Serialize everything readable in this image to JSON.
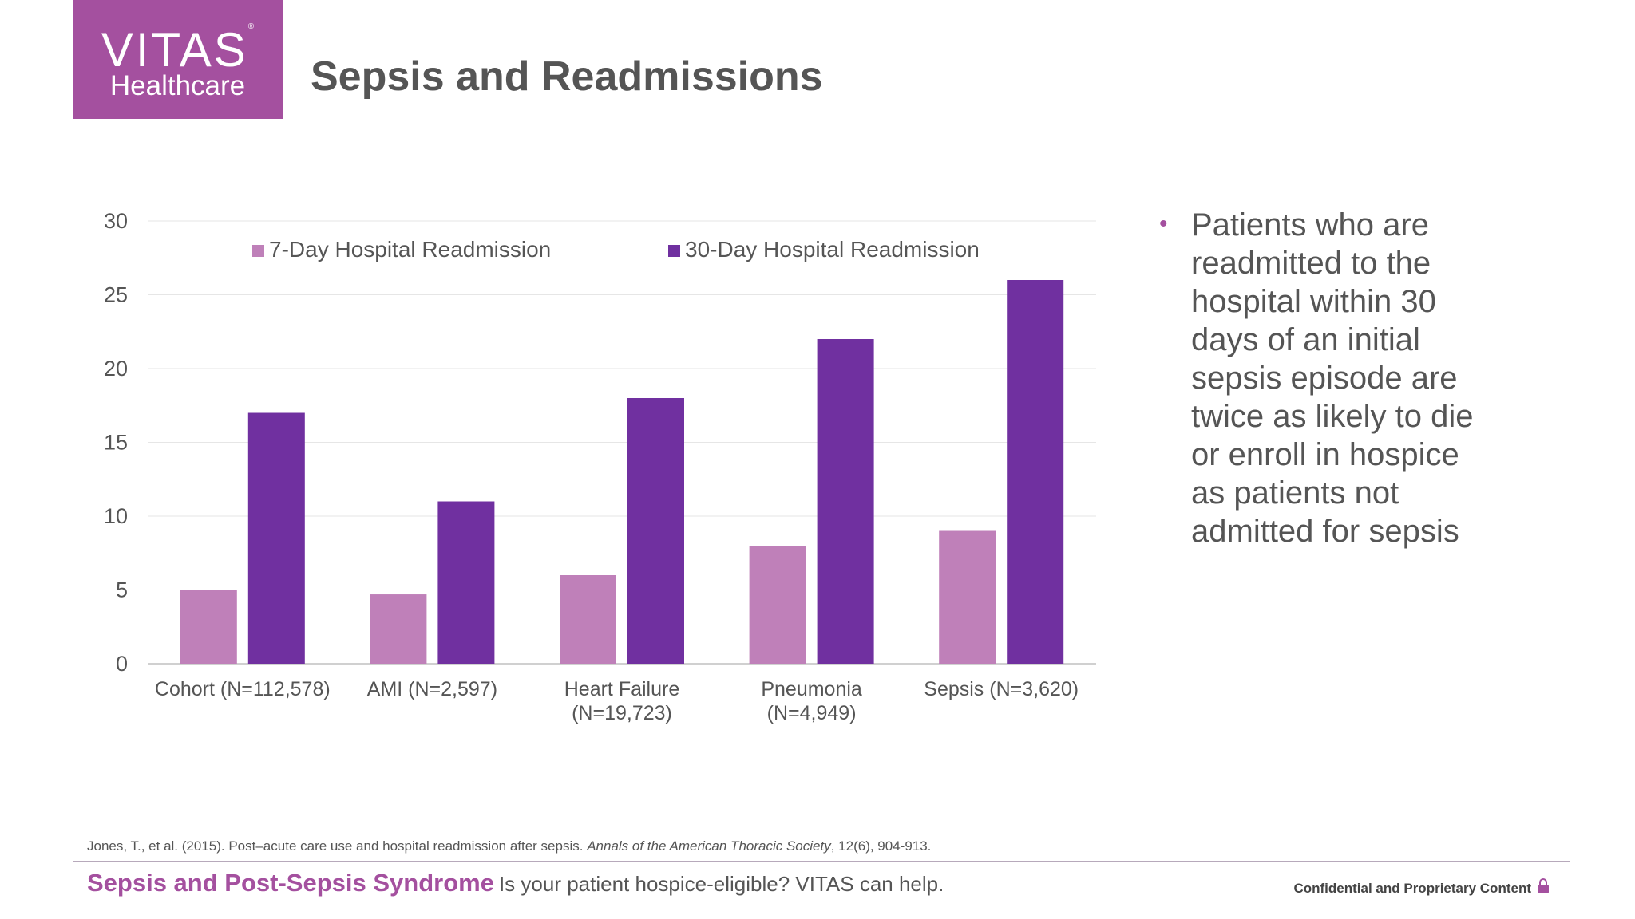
{
  "logo": {
    "brand": "VITAS",
    "mark": "®",
    "sub": "Healthcare"
  },
  "page_title": "Sepsis and Readmissions",
  "bullets": [
    "Patients who are readmitted to the hospital within 30 days of an initial sepsis episode are twice as likely to die or enroll in hospice as patients not admitted for sepsis"
  ],
  "citation": {
    "prefix": "Jones, T., et al. (2015). Post–acute care use and hospital readmission after sepsis. ",
    "journal": "Annals of the American Thoracic Society",
    "suffix": ", 12(6), 904-913."
  },
  "footer": {
    "title": "Sepsis and Post-Sepsis Syndrome",
    "tagline": "Is your patient hospice-eligible? VITAS can help.",
    "confidential": "Confidential and Proprietary Content"
  },
  "colors": {
    "brand": "#a4509f",
    "series_7day": "#bf80b9",
    "series_30day": "#7030a0",
    "text": "#555555"
  },
  "chart_data": {
    "type": "bar",
    "categories": [
      [
        "Cohort (N=112,578)"
      ],
      [
        "AMI (N=2,597)"
      ],
      [
        "Heart Failure",
        "(N=19,723)"
      ],
      [
        "Pneumonia",
        "(N=4,949)"
      ],
      [
        "Sepsis (N=3,620)"
      ]
    ],
    "series": [
      {
        "name": "7-Day Hospital Readmission",
        "values": [
          5,
          4.7,
          6,
          8,
          9
        ],
        "color": "#bf80b9"
      },
      {
        "name": "30-Day Hospital Readmission",
        "values": [
          17,
          11,
          18,
          22,
          26
        ],
        "color": "#7030a0"
      }
    ],
    "ylim": [
      0,
      30
    ],
    "yticks": [
      0,
      5,
      10,
      15,
      20,
      25,
      30
    ],
    "grid": true,
    "legend": "top"
  }
}
